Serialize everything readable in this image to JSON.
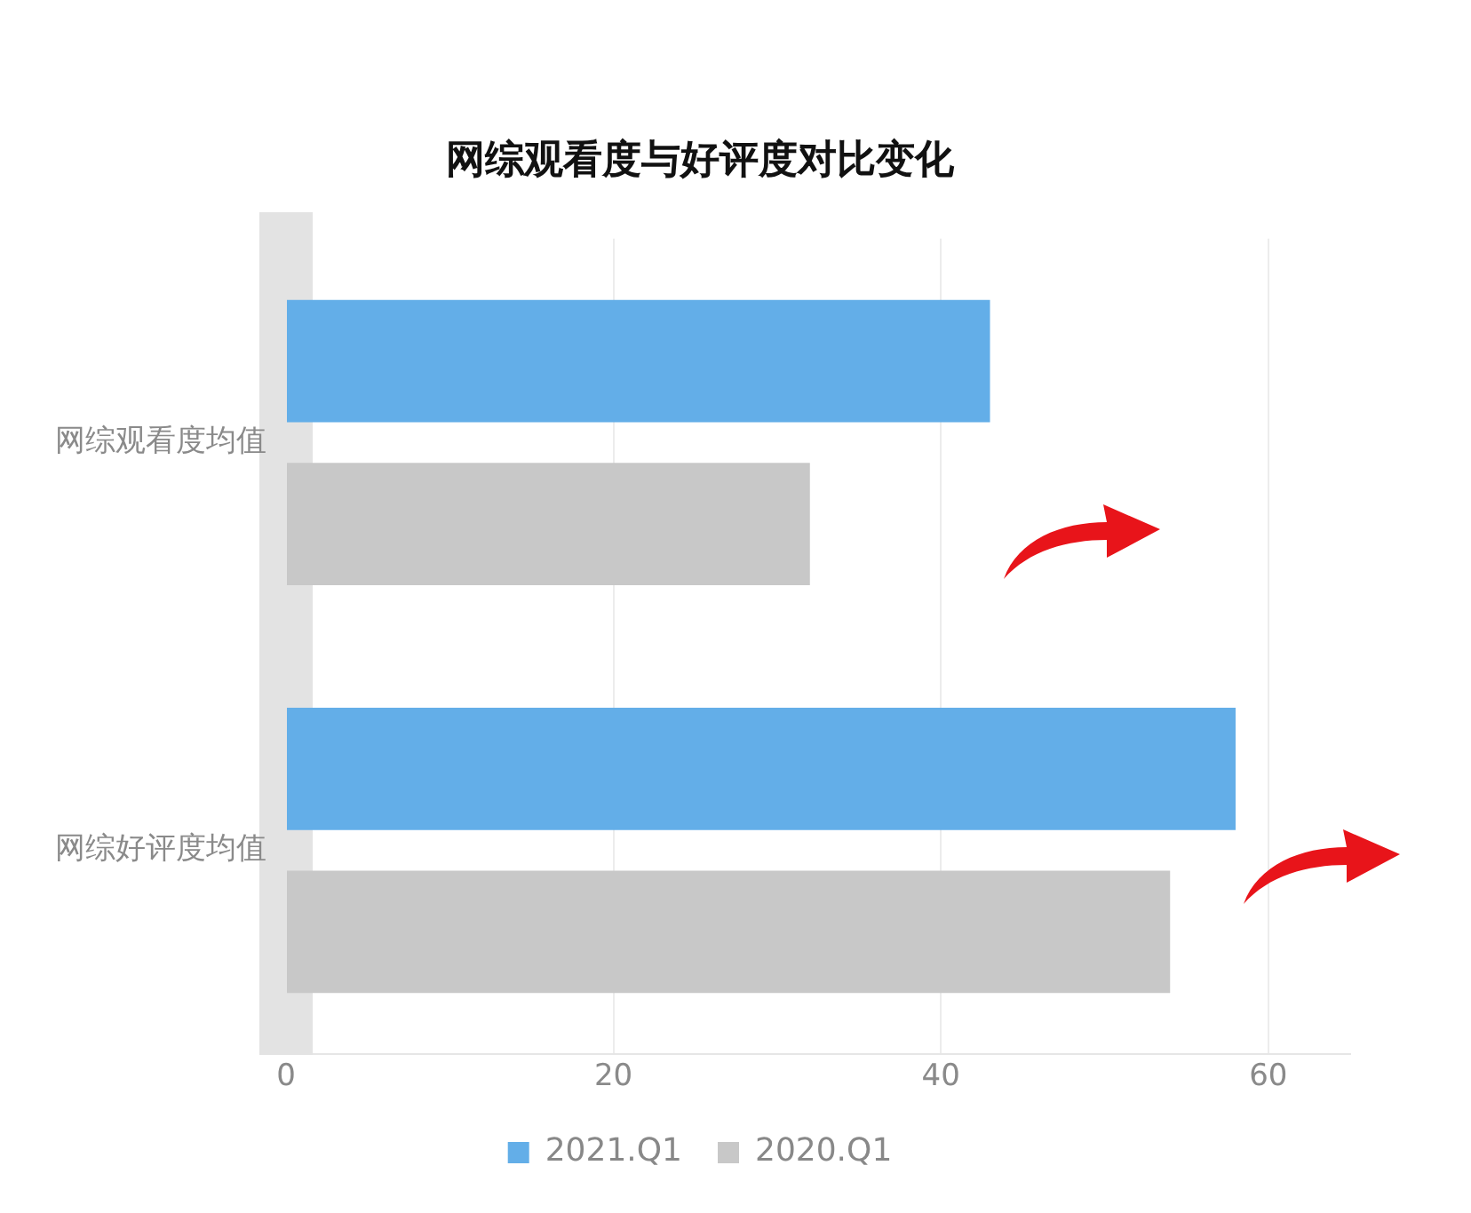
{
  "chart_data": {
    "type": "bar",
    "orientation": "horizontal",
    "title": "网综观看度与好评度对比变化",
    "categories": [
      "网综观看度均值",
      "网综好评度均值"
    ],
    "series": [
      {
        "name": "2021.Q1",
        "color": "#63aee8",
        "values": [
          43,
          58
        ]
      },
      {
        "name": "2020.Q1",
        "color": "#c8c8c8",
        "values": [
          32,
          54
        ]
      }
    ],
    "xlim": [
      0,
      65
    ],
    "xticks": [
      0,
      20,
      40,
      60
    ],
    "grid": "x",
    "legend": "bottom"
  }
}
